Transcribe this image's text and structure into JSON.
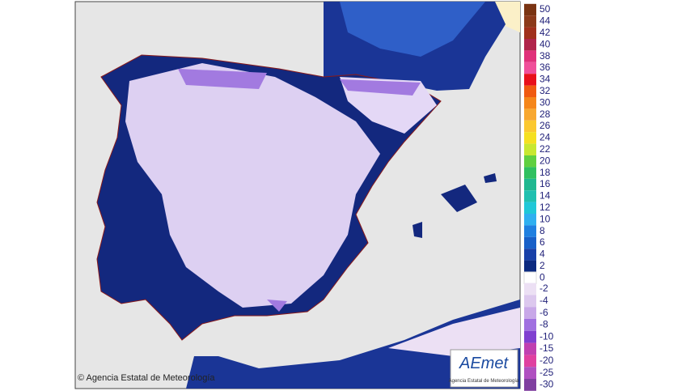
{
  "map": {
    "legend": [
      {
        "label": 50,
        "color": "#7a3412"
      },
      {
        "label": 44,
        "color": "#8b3a1a"
      },
      {
        "label": 42,
        "color": "#a0301c"
      },
      {
        "label": 40,
        "color": "#b0244a"
      },
      {
        "label": 38,
        "color": "#e0307a"
      },
      {
        "label": 36,
        "color": "#f04f9a"
      },
      {
        "label": 34,
        "color": "#e8101a"
      },
      {
        "label": 32,
        "color": "#f05a10"
      },
      {
        "label": 30,
        "color": "#f5861a"
      },
      {
        "label": 28,
        "color": "#f8a830"
      },
      {
        "label": 26,
        "color": "#fbc830"
      },
      {
        "label": 24,
        "color": "#f5e020"
      },
      {
        "label": 22,
        "color": "#c8e830"
      },
      {
        "label": 20,
        "color": "#60d040"
      },
      {
        "label": 18,
        "color": "#30c060"
      },
      {
        "label": 16,
        "color": "#20b890"
      },
      {
        "label": 14,
        "color": "#20c0b0"
      },
      {
        "label": 12,
        "color": "#20c8d8"
      },
      {
        "label": 10,
        "color": "#30b0f0"
      },
      {
        "label": 8,
        "color": "#2080e0"
      },
      {
        "label": 6,
        "color": "#1860c8"
      },
      {
        "label": 4,
        "color": "#1840a8"
      },
      {
        "label": 2,
        "color": "#0c2a80"
      },
      {
        "label": 0,
        "color": "#ffffff"
      },
      {
        "label": -2,
        "color": "#ece0f4"
      },
      {
        "label": -4,
        "color": "#dcc8ee"
      },
      {
        "label": -6,
        "color": "#c8a8e8"
      },
      {
        "label": -8,
        "color": "#a070e0"
      },
      {
        "label": -10,
        "color": "#8040d0"
      },
      {
        "label": -15,
        "color": "#c040b0"
      },
      {
        "label": -20,
        "color": "#e040a0"
      },
      {
        "label": -25,
        "color": "#b050c0"
      },
      {
        "label": -30,
        "color": "#8040a0"
      }
    ],
    "copyright": "© Agencia Estatal de Meteorología",
    "logo": {
      "brand": "AEmet",
      "subtitle": "Agencia Estatal de Meteorología"
    }
  }
}
